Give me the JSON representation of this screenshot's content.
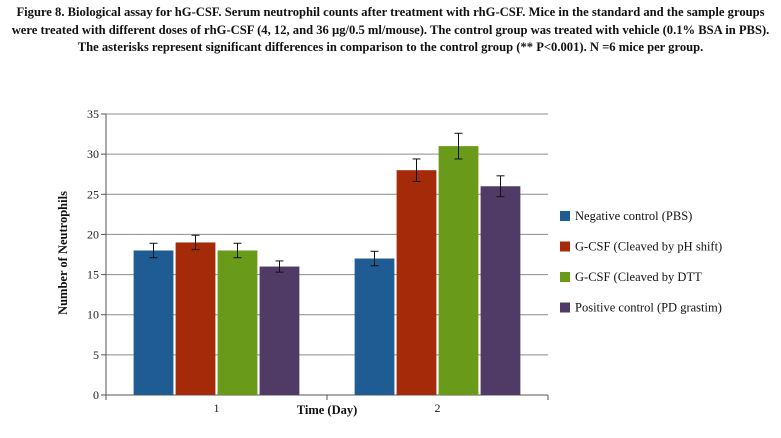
{
  "caption": "Figure 8. Biological assay for hG-CSF. Serum neutrophil counts after treatment with rhG-CSF. Mice in the standard and the sample groups were treated with different doses of rhG-CSF (4, 12, and 36 µg/0.5 ml/mouse). The control group was treated with vehicle (0.1% BSA in PBS). The asterisks represent significant differences in comparison to the control group (** P<0.001). N =6 mice per group.",
  "chart_data": {
    "type": "bar",
    "title": "",
    "xlabel": "Time (Day)",
    "ylabel": "Number of Neutrophils",
    "categories": [
      "1",
      "2"
    ],
    "ylim": [
      0,
      35
    ],
    "yticks": [
      0,
      5,
      10,
      15,
      20,
      25,
      30,
      35
    ],
    "grid": true,
    "legend_position": "right",
    "series": [
      {
        "name": "Negative control (PBS)",
        "color": "#1f5c94",
        "values": [
          18,
          17
        ],
        "errors": [
          0.9,
          0.9
        ]
      },
      {
        "name": "G-CSF (Cleaved by pH shift)",
        "color": "#a52a0a",
        "values": [
          19,
          28
        ],
        "errors": [
          0.9,
          1.4
        ]
      },
      {
        "name": "G-CSF (Cleaved by DTT",
        "color": "#6a9a1a",
        "values": [
          18,
          31
        ],
        "errors": [
          0.9,
          1.6
        ]
      },
      {
        "name": "Positive control (PD grastim)",
        "color": "#4f3b66",
        "values": [
          16,
          26
        ],
        "errors": [
          0.7,
          1.3
        ]
      }
    ]
  }
}
